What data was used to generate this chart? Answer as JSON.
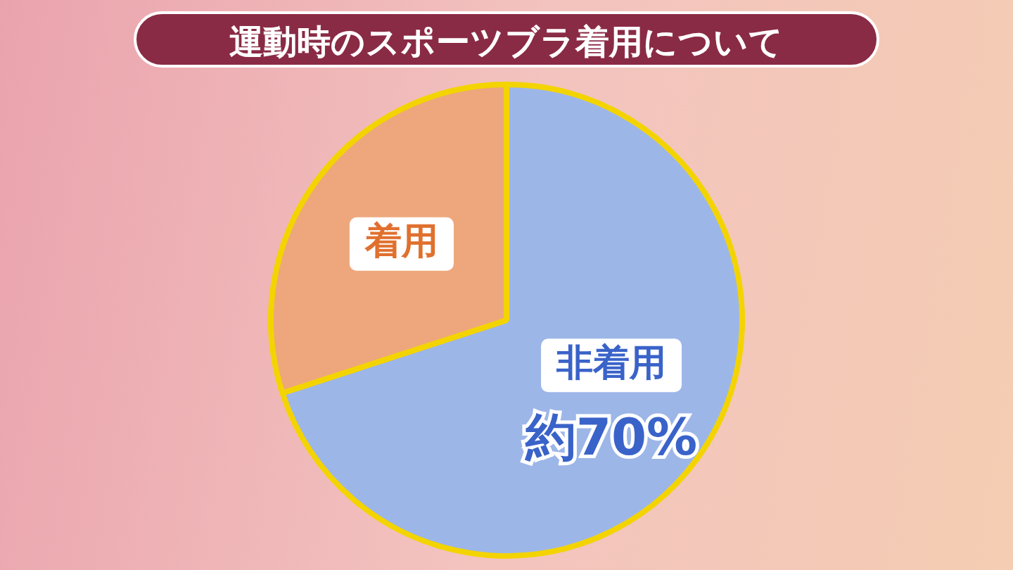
{
  "chart_data": {
    "type": "pie",
    "title": "運動時のスポーツブラ着用について",
    "categories": [
      "非着用",
      "着用"
    ],
    "values": [
      70,
      30
    ],
    "colors": [
      "#9db6e8",
      "#eea77c"
    ],
    "value_labels": [
      "約70%",
      null
    ]
  }
}
